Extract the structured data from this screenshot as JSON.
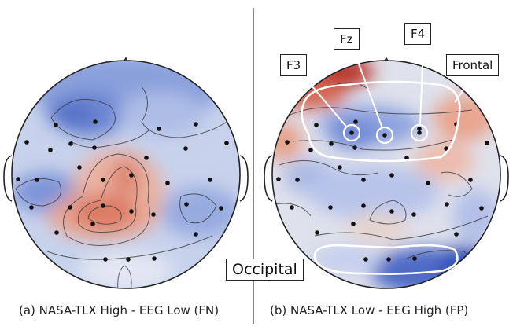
{
  "panels": [
    {
      "caption": "(a) NASA-TLX High - EEG Low (FN)"
    },
    {
      "caption": "(b) NASA-TLX Low - EEG High (FP)",
      "region_labels": {
        "f3": "F3",
        "fz": "Fz",
        "f4": "F4",
        "frontal": "Frontal",
        "occipital": "Occipital"
      }
    }
  ],
  "colors": {
    "positive": "#d8553f",
    "negative": "#2f4fb8",
    "neutral": "#ece7e4",
    "electrode": "#111111",
    "highlight": "#ffffff"
  }
}
